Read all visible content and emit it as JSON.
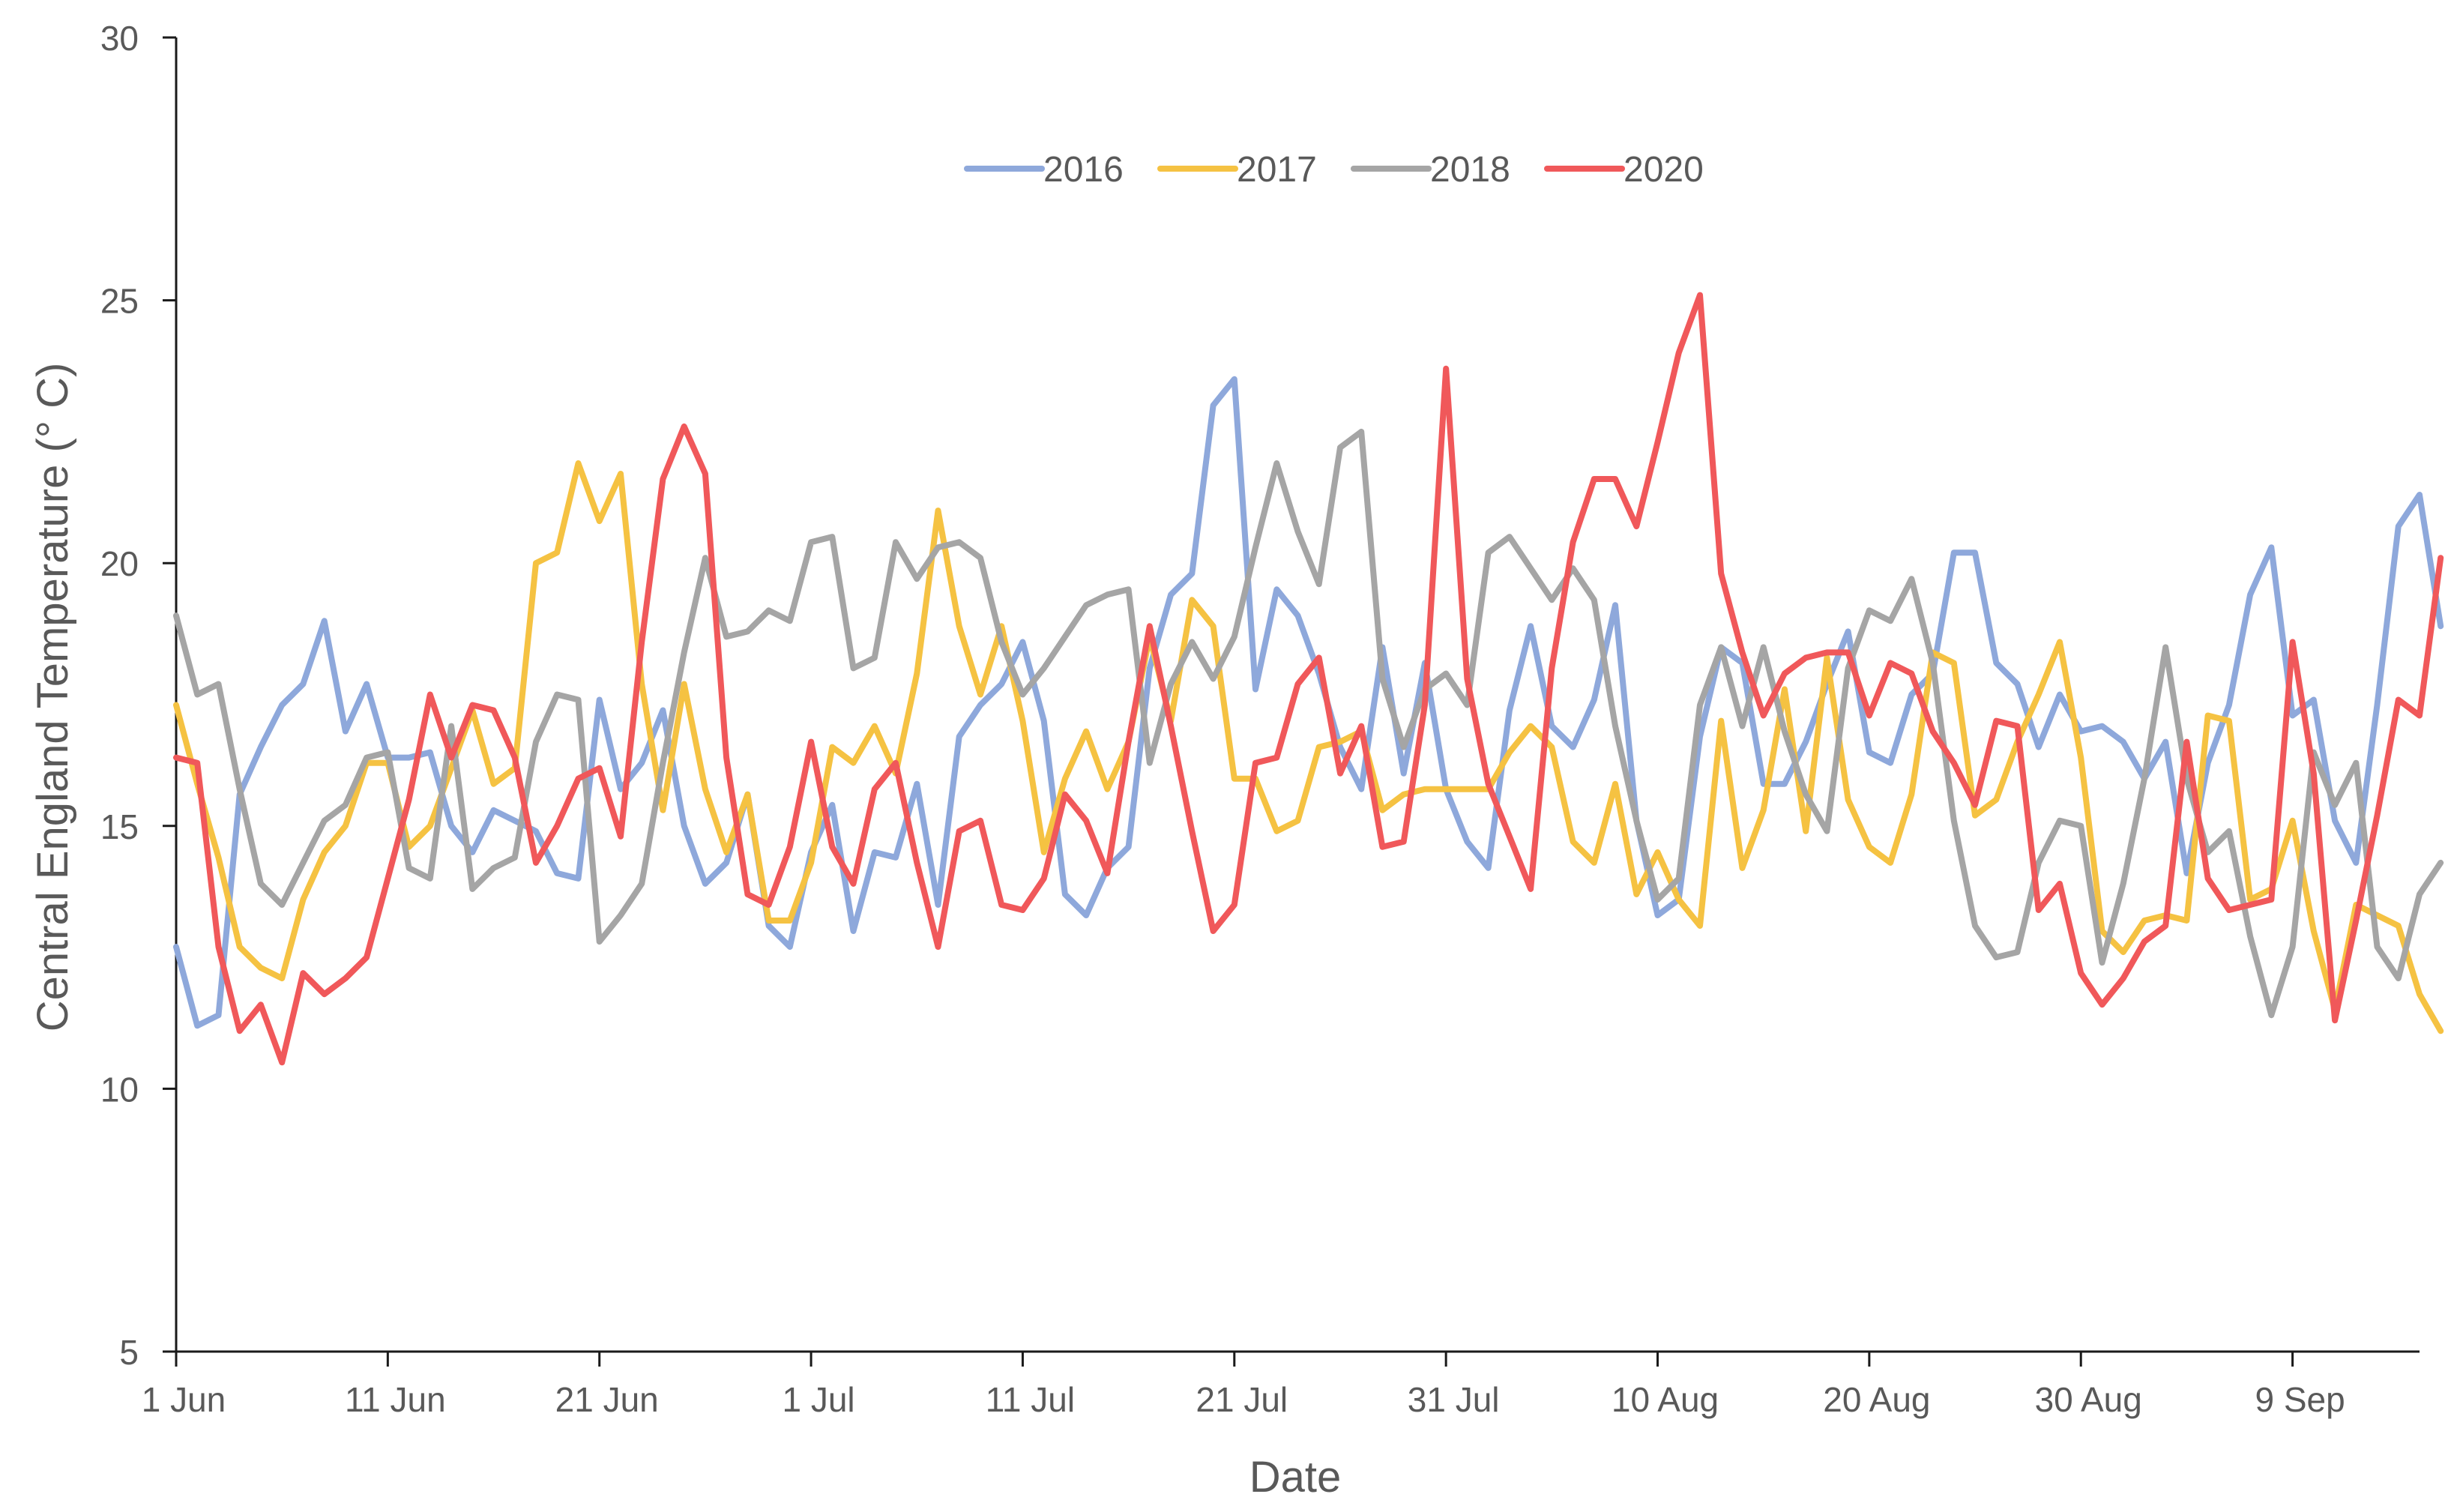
{
  "chart_data": {
    "type": "line",
    "title": "",
    "xlabel": "Date",
    "ylabel": "Central England Temperature (° C)",
    "ylim": [
      5,
      30
    ],
    "yticks": [
      5,
      10,
      15,
      20,
      25,
      30
    ],
    "ytick_labels": [
      "5",
      "10",
      "15",
      "20",
      "25",
      "30"
    ],
    "x_day_range": [
      1,
      107
    ],
    "xtick_days": [
      1,
      11,
      21,
      31,
      41,
      51,
      61,
      71,
      81,
      91,
      101
    ],
    "xtick_labels": [
      "1 Jun",
      "11 Jun",
      "21 Jun",
      "1 Jul",
      "11 Jul",
      "21 Jul",
      "31 Jul",
      "10 Aug",
      "20 Aug",
      "30 Aug",
      "9 Sep"
    ],
    "grid": false,
    "legend_position": "top-center",
    "series": [
      {
        "name": "2016",
        "color": "#8EA8DB",
        "values": [
          12.7,
          11.2,
          11.4,
          15.6,
          16.5,
          17.3,
          17.7,
          18.9,
          16.8,
          17.7,
          16.3,
          16.3,
          16.4,
          15.0,
          14.5,
          15.3,
          15.1,
          14.9,
          14.1,
          14.0,
          17.4,
          15.7,
          16.2,
          17.2,
          15.0,
          13.9,
          14.3,
          15.6,
          13.1,
          12.7,
          14.5,
          15.4,
          13.0,
          14.5,
          14.4,
          15.8,
          13.5,
          16.7,
          17.3,
          17.7,
          18.5,
          17.0,
          13.7,
          13.3,
          14.2,
          14.6,
          18.0,
          19.4,
          19.8,
          23.0,
          23.5,
          17.6,
          19.5,
          19.0,
          17.9,
          16.5,
          15.7,
          18.4,
          16.0,
          18.1,
          15.7,
          14.7,
          14.2,
          17.2,
          18.8,
          16.9,
          16.5,
          17.4,
          19.2,
          15.1,
          13.3,
          13.6,
          16.7,
          18.4,
          18.1,
          15.8,
          15.8,
          16.6,
          17.7,
          18.7,
          16.4,
          16.2,
          17.5,
          17.9,
          20.2,
          20.2,
          18.1,
          17.7,
          16.5,
          17.5,
          16.8,
          16.9,
          16.6,
          15.9,
          16.6,
          14.1,
          16.2,
          17.3,
          19.4,
          20.3,
          17.1,
          17.4,
          15.1,
          14.3,
          17.3,
          20.7,
          21.3,
          18.8
        ]
      },
      {
        "name": "2017",
        "color": "#F5C242",
        "values": [
          17.3,
          15.8,
          14.4,
          12.7,
          12.3,
          12.1,
          13.6,
          14.5,
          15.0,
          16.2,
          16.2,
          14.6,
          15.0,
          16.1,
          17.2,
          15.8,
          16.1,
          20.0,
          20.2,
          21.9,
          20.8,
          21.7,
          17.7,
          15.3,
          17.7,
          15.7,
          14.5,
          15.6,
          13.2,
          13.2,
          14.3,
          16.5,
          16.2,
          16.9,
          16.0,
          17.9,
          21.0,
          18.8,
          17.5,
          18.8,
          17.0,
          14.5,
          15.9,
          16.8,
          15.7,
          16.6,
          18.6,
          17.0,
          19.3,
          18.8,
          15.9,
          15.9,
          14.9,
          15.1,
          16.5,
          16.6,
          16.8,
          15.3,
          15.6,
          15.7,
          15.7,
          15.7,
          15.7,
          16.4,
          16.9,
          16.5,
          14.7,
          14.3,
          15.8,
          13.7,
          14.5,
          13.6,
          13.1,
          17.0,
          14.2,
          15.3,
          17.6,
          14.9,
          18.2,
          15.5,
          14.6,
          14.3,
          15.6,
          18.3,
          18.1,
          15.2,
          15.5,
          16.6,
          17.5,
          18.5,
          16.3,
          13.0,
          12.6,
          13.2,
          13.3,
          13.2,
          17.1,
          17.0,
          13.6,
          13.8,
          15.1,
          13.0,
          11.5,
          13.5,
          13.3,
          13.1,
          11.8,
          11.1
        ]
      },
      {
        "name": "2018",
        "color": "#A5A5A5",
        "values": [
          19.0,
          17.5,
          17.7,
          15.7,
          13.9,
          13.5,
          14.3,
          15.1,
          15.4,
          16.3,
          16.4,
          14.2,
          14.0,
          16.9,
          13.8,
          14.2,
          14.4,
          16.6,
          17.5,
          17.4,
          12.8,
          13.3,
          13.9,
          16.2,
          18.3,
          20.1,
          18.6,
          18.7,
          19.1,
          18.9,
          20.4,
          20.5,
          18.0,
          18.2,
          20.4,
          19.7,
          20.3,
          20.4,
          20.1,
          18.5,
          17.5,
          18.0,
          18.6,
          19.2,
          19.4,
          19.5,
          16.2,
          17.7,
          18.5,
          17.8,
          18.6,
          20.3,
          21.9,
          20.6,
          19.6,
          22.2,
          22.5,
          17.8,
          16.5,
          17.6,
          17.9,
          17.3,
          20.2,
          20.5,
          19.9,
          19.3,
          19.9,
          19.3,
          16.9,
          15.1,
          13.6,
          14.0,
          17.3,
          18.4,
          16.9,
          18.4,
          16.8,
          15.6,
          14.9,
          18.0,
          19.1,
          18.9,
          19.7,
          18.1,
          15.1,
          13.1,
          12.5,
          12.6,
          14.3,
          15.1,
          15.0,
          12.4,
          13.9,
          15.9,
          18.4,
          15.9,
          14.5,
          14.9,
          12.9,
          11.4,
          12.7,
          16.4,
          15.4,
          16.2,
          12.7,
          12.1,
          13.7,
          14.3
        ]
      },
      {
        "name": "2020",
        "color": "#F0585A",
        "values": [
          16.3,
          16.2,
          12.7,
          11.1,
          11.6,
          10.5,
          12.2,
          11.8,
          12.1,
          12.5,
          14.0,
          15.5,
          17.5,
          16.3,
          17.3,
          17.2,
          16.3,
          14.3,
          15.0,
          15.9,
          16.1,
          14.8,
          18.5,
          21.6,
          22.6,
          21.7,
          16.3,
          13.7,
          13.5,
          14.6,
          16.6,
          14.6,
          13.9,
          15.7,
          16.2,
          14.3,
          12.7,
          14.9,
          15.1,
          13.5,
          13.4,
          14.0,
          15.6,
          15.1,
          14.1,
          16.6,
          18.8,
          16.9,
          14.9,
          13.0,
          13.5,
          16.2,
          16.3,
          17.7,
          18.2,
          16.0,
          16.9,
          14.6,
          14.7,
          17.3,
          23.7,
          17.8,
          15.8,
          14.8,
          13.8,
          18.0,
          20.4,
          21.6,
          21.6,
          20.7,
          22.3,
          24.0,
          25.1,
          19.8,
          18.3,
          17.1,
          17.9,
          18.2,
          18.3,
          18.3,
          17.1,
          18.1,
          17.9,
          16.8,
          16.2,
          15.4,
          17.0,
          16.9,
          13.4,
          13.9,
          12.2,
          11.6,
          12.1,
          12.8,
          13.1,
          16.6,
          14.0,
          13.4,
          13.5,
          13.6,
          18.5,
          16.0,
          11.3,
          13.2,
          15.2,
          17.4,
          17.1,
          20.1
        ]
      }
    ]
  }
}
